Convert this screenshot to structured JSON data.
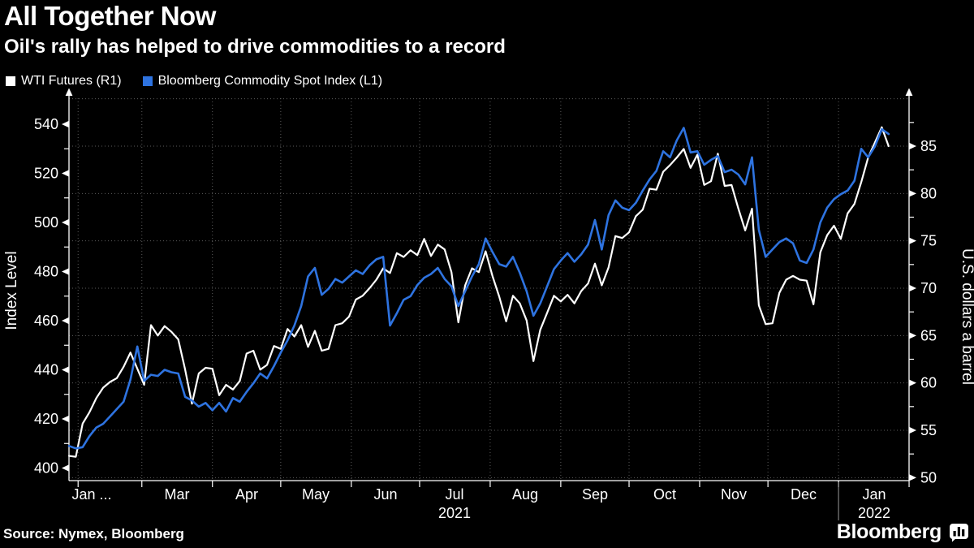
{
  "header": {
    "title": "All Together Now",
    "subtitle": "Oil's rally has helped to drive commodities to a record"
  },
  "legend": {
    "items": [
      {
        "name": "wti",
        "label": "WTI Futures (R1)",
        "color": "#ffffff"
      },
      {
        "name": "bcom",
        "label": "Bloomberg Commodity Spot Index  (L1)",
        "color": "#2e73e0"
      }
    ]
  },
  "source": "Source: Nymex, Bloomberg",
  "logo": {
    "text": "Bloomberg",
    "icon": "bar-chart-bubble-icon"
  },
  "colors": {
    "background": "#000000",
    "grid": "#5c5c5c",
    "axis": "#ffffff",
    "wti_line": "#ffffff",
    "bcom_line": "#2e73e0"
  },
  "chart_data": {
    "type": "line",
    "title": "All Together Now",
    "subtitle": "Oil's rally has helped to drive commodities to a record",
    "x_axis": {
      "start_label": "Jan ...",
      "month_labels": [
        "Jan ...",
        "Mar",
        "Apr",
        "May",
        "Jun",
        "Jul",
        "Aug",
        "Sep",
        "Oct",
        "Nov",
        "Dec",
        "Jan"
      ],
      "year_labels": [
        "2021",
        "2022"
      ],
      "range_days": 369,
      "grid": "dotted-monthly"
    },
    "left_axis": {
      "label": "Index Level",
      "ticks": [
        400,
        420,
        440,
        460,
        480,
        500,
        520,
        540
      ],
      "minor_step": 10,
      "series": "Bloomberg Commodity Spot Index (L1)"
    },
    "right_axis": {
      "label": "U.S. dollars a barrel",
      "ticks": [
        50,
        55,
        60,
        65,
        70,
        75,
        80,
        85
      ],
      "minor_step": 2.5,
      "gridline_values": [
        50,
        55,
        60,
        65,
        70,
        75,
        80,
        85,
        90
      ],
      "series": "WTI Futures (R1)"
    },
    "day_step": 3,
    "series": [
      {
        "name": "WTI Futures (R1)",
        "axis": "right",
        "color": "#ffffff",
        "values": [
          52.3,
          52.2,
          55.7,
          56.9,
          58.4,
          59.5,
          60.1,
          60.5,
          61.7,
          63.2,
          61.5,
          59.8,
          66.1,
          65.0,
          66.0,
          65.4,
          64.6,
          61.4,
          57.8,
          61.0,
          61.6,
          61.5,
          58.7,
          59.8,
          59.3,
          60.2,
          63.1,
          63.4,
          61.4,
          61.9,
          63.9,
          63.6,
          65.7,
          64.9,
          66.1,
          63.8,
          65.5,
          63.4,
          63.6,
          66.1,
          66.3,
          67.0,
          68.8,
          69.2,
          70.0,
          70.9,
          72.1,
          71.6,
          73.7,
          73.3,
          74.0,
          73.5,
          75.2,
          73.4,
          74.6,
          74.1,
          71.7,
          66.4,
          70.3,
          72.1,
          71.7,
          73.9,
          71.3,
          69.1,
          66.5,
          69.2,
          68.4,
          66.6,
          62.3,
          65.6,
          67.4,
          69.2,
          68.6,
          69.3,
          68.4,
          69.7,
          70.5,
          72.6,
          70.3,
          72.2,
          75.5,
          75.3,
          75.9,
          77.6,
          78.3,
          80.5,
          80.4,
          82.3,
          83.0,
          83.8,
          84.7,
          82.7,
          84.1,
          80.9,
          81.3,
          84.2,
          80.8,
          80.9,
          78.4,
          76.1,
          78.4,
          68.2,
          66.2,
          66.3,
          69.5,
          70.9,
          71.3,
          70.9,
          70.8,
          68.3,
          73.8,
          75.6,
          76.6,
          75.2,
          77.9,
          78.9,
          81.2,
          83.8,
          85.4,
          87.0,
          85.0
        ]
      },
      {
        "name": "Bloomberg Commodity Spot Index (L1)",
        "axis": "left",
        "color": "#2e73e0",
        "values": [
          409,
          408,
          408.5,
          413,
          416.5,
          418,
          421,
          424,
          427,
          436,
          449.5,
          435.5,
          438,
          437.5,
          440,
          439,
          438.5,
          429,
          427.5,
          425,
          426.5,
          423.5,
          426.5,
          423,
          428.5,
          427,
          431,
          434.5,
          438.5,
          436.5,
          441.5,
          447,
          452,
          458,
          466,
          478,
          481.5,
          470.5,
          473,
          477,
          475.5,
          478,
          480.5,
          479,
          482.5,
          485,
          486,
          458,
          463,
          468.5,
          470,
          474.5,
          477.5,
          479,
          481.5,
          477,
          474,
          466,
          472,
          478,
          483,
          493.5,
          488,
          483,
          482,
          486,
          479.5,
          472,
          462,
          467,
          474,
          481,
          484.5,
          487.5,
          484,
          487,
          491,
          501,
          489,
          503,
          509,
          506,
          505,
          508,
          513,
          517.5,
          521,
          529,
          526.5,
          533.5,
          538.5,
          528.5,
          529,
          523.5,
          525.5,
          527,
          520.5,
          521.5,
          519.5,
          515.5,
          526.5,
          497,
          486,
          489,
          492,
          493.5,
          491.5,
          484.5,
          483.5,
          489,
          500,
          506,
          509.5,
          511.5,
          513,
          517,
          530,
          526.5,
          531,
          538,
          536
        ]
      }
    ]
  }
}
